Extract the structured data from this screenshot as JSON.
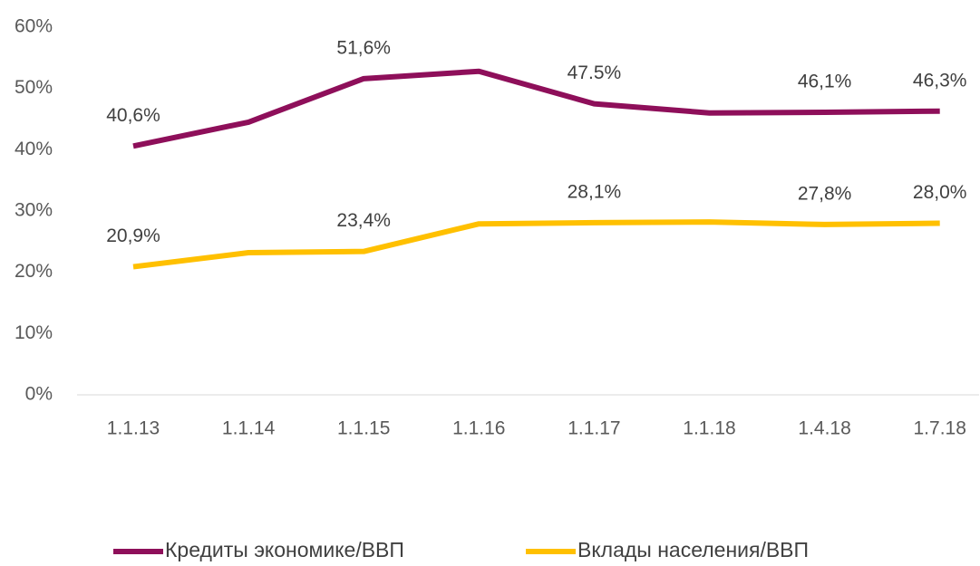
{
  "chart_data": {
    "type": "line",
    "categories": [
      "1.1.13",
      "1.1.14",
      "1.1.15",
      "1.1.16",
      "1.1.17",
      "1.1.18",
      "1.4.18",
      "1.7.18"
    ],
    "series": [
      {
        "name": "Кредиты экономике/ВВП",
        "color": "#8e0f5a",
        "values": [
          40.6,
          44.5,
          51.6,
          52.8,
          47.5,
          46.0,
          46.1,
          46.3
        ],
        "value_labels": [
          "40,6%",
          null,
          "51,6%",
          null,
          "47.5%",
          null,
          "46,1%",
          "46,3%"
        ]
      },
      {
        "name": "Вклады населения/ВВП",
        "color": "#ffc000",
        "values": [
          20.9,
          23.2,
          23.4,
          27.9,
          28.1,
          28.2,
          27.8,
          28.0
        ],
        "value_labels": [
          "20,9%",
          null,
          "23,4%",
          null,
          "28,1%",
          null,
          "27,8%",
          "28,0%"
        ]
      }
    ],
    "ylim": [
      0,
      60
    ],
    "yticks": [
      {
        "value": 0,
        "label": "0%"
      },
      {
        "value": 10,
        "label": "10%"
      },
      {
        "value": 20,
        "label": "20%"
      },
      {
        "value": 30,
        "label": "30%"
      },
      {
        "value": 40,
        "label": "40%"
      },
      {
        "value": 50,
        "label": "50%"
      },
      {
        "value": 60,
        "label": "60%"
      }
    ],
    "grid": false,
    "legend": "bottom"
  }
}
